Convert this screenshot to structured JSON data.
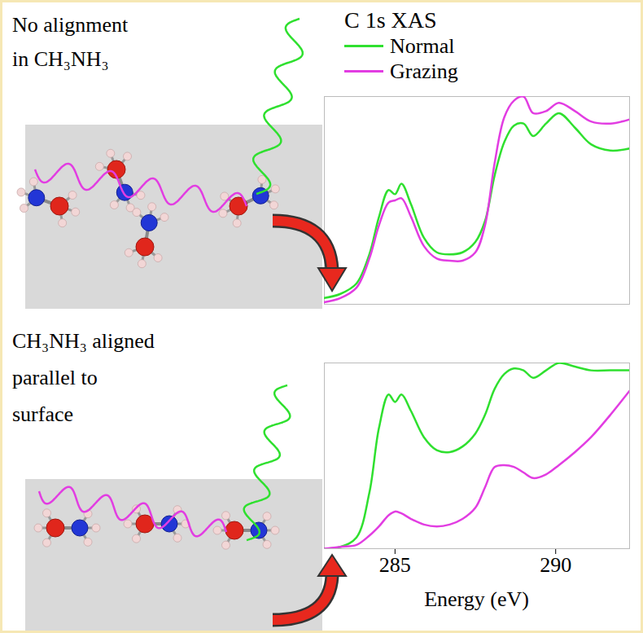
{
  "diagram": {
    "panels": [
      {
        "lines": [
          "No alignment",
          "in CH₃NH₃"
        ]
      },
      {
        "lines": [
          "CH₃NH₃ aligned",
          "parallel to",
          "surface"
        ]
      }
    ]
  },
  "chart_data": [
    {
      "type": "line",
      "title": "C 1s XAS",
      "legend": "top-left",
      "tick_labels": false,
      "xlim": [
        282.8,
        292.3
      ],
      "xticks": [],
      "ylim": [
        0,
        1
      ],
      "yticks": [],
      "x": [
        282.8,
        283.3,
        283.8,
        284.2,
        284.5,
        284.8,
        285.0,
        285.2,
        285.5,
        285.9,
        286.3,
        286.7,
        287.1,
        287.5,
        287.8,
        288.1,
        288.4,
        288.7,
        289.0,
        289.3,
        289.7,
        290.1,
        290.6,
        291.1,
        291.7,
        292.3
      ],
      "series": [
        {
          "name": "Normal",
          "color": "#2fe02f",
          "values": [
            0.03,
            0.05,
            0.1,
            0.24,
            0.42,
            0.55,
            0.53,
            0.58,
            0.48,
            0.32,
            0.25,
            0.24,
            0.25,
            0.3,
            0.4,
            0.62,
            0.78,
            0.86,
            0.87,
            0.81,
            0.87,
            0.92,
            0.85,
            0.77,
            0.74,
            0.75
          ]
        },
        {
          "name": "Grazing",
          "color": "#e23de2",
          "values": [
            0.01,
            0.03,
            0.08,
            0.22,
            0.38,
            0.49,
            0.5,
            0.51,
            0.42,
            0.28,
            0.22,
            0.21,
            0.21,
            0.25,
            0.38,
            0.68,
            0.9,
            0.98,
            1.0,
            0.92,
            0.93,
            0.97,
            0.93,
            0.88,
            0.87,
            0.89
          ]
        }
      ]
    },
    {
      "type": "line",
      "xlabel": "Energy (eV)",
      "tick_labels": "x",
      "xlim": [
        282.8,
        292.3
      ],
      "xticks": [
        285,
        290
      ],
      "ylim": [
        0,
        1
      ],
      "yticks": [],
      "x": [
        282.8,
        283.3,
        283.8,
        284.2,
        284.5,
        284.8,
        285.0,
        285.2,
        285.5,
        285.9,
        286.3,
        286.7,
        287.1,
        287.5,
        287.8,
        288.1,
        288.4,
        288.7,
        289.0,
        289.3,
        289.7,
        290.1,
        290.6,
        291.1,
        291.7,
        292.3
      ],
      "series": [
        {
          "name": "Normal",
          "color": "#2fe02f",
          "values": [
            0.0,
            0.01,
            0.06,
            0.3,
            0.65,
            0.83,
            0.79,
            0.83,
            0.74,
            0.6,
            0.53,
            0.52,
            0.55,
            0.62,
            0.72,
            0.86,
            0.94,
            0.97,
            0.96,
            0.92,
            0.96,
            1.0,
            0.98,
            0.96,
            0.96,
            0.96
          ]
        },
        {
          "name": "Grazing",
          "color": "#e23de2",
          "values": [
            0.0,
            0.01,
            0.02,
            0.07,
            0.12,
            0.18,
            0.2,
            0.19,
            0.16,
            0.13,
            0.12,
            0.13,
            0.16,
            0.22,
            0.33,
            0.44,
            0.45,
            0.44,
            0.41,
            0.38,
            0.4,
            0.45,
            0.52,
            0.6,
            0.72,
            0.85
          ]
        }
      ]
    }
  ]
}
